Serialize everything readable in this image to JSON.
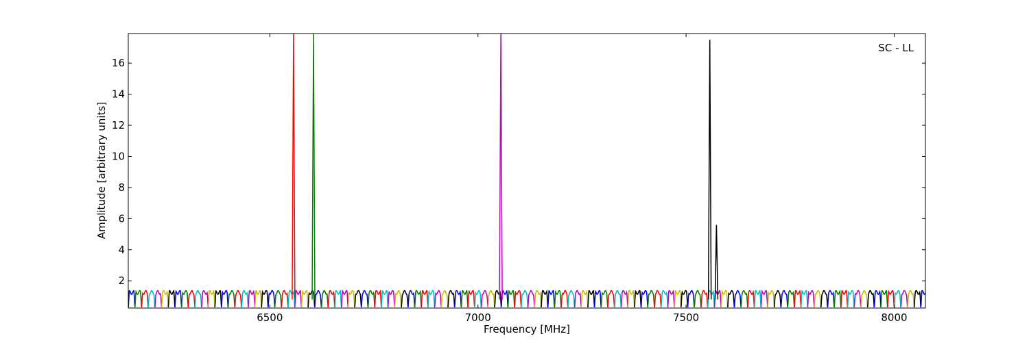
{
  "chart_data": {
    "type": "line",
    "title": "",
    "annotation": "SC - LL",
    "xlabel": "Frequency [MHz]",
    "ylabel": "Amplitude [arbitrary units]",
    "xlim": [
      6160,
      8075
    ],
    "ylim": [
      0.25,
      17.9
    ],
    "xticks": [
      6500,
      7000,
      7500,
      8000
    ],
    "yticks": [
      2,
      4,
      6,
      8,
      10,
      12,
      14,
      16
    ],
    "grid": false,
    "legend": "none",
    "channel_width_mhz": 16,
    "channel_cycle": [
      "blue",
      "green",
      "red",
      "cyan",
      "magenta",
      "yellow",
      "black"
    ],
    "colors": {
      "blue": "#0000ff",
      "green": "#007f00",
      "red": "#ff0000",
      "cyan": "#00bfbf",
      "magenta": "#bf00bf",
      "yellow": "#bfbf00",
      "black": "#000000"
    },
    "baseline_peak": 1.25,
    "spikes": [
      {
        "x": 6557,
        "y": 17.9,
        "color": "red"
      },
      {
        "x": 6605,
        "y": 17.9,
        "color": "green"
      },
      {
        "x": 7055,
        "y": 17.9,
        "color": "magenta"
      },
      {
        "x": 7557,
        "y": 17.5,
        "color": "black"
      },
      {
        "x": 7573,
        "y": 5.6,
        "color": "black"
      }
    ]
  }
}
